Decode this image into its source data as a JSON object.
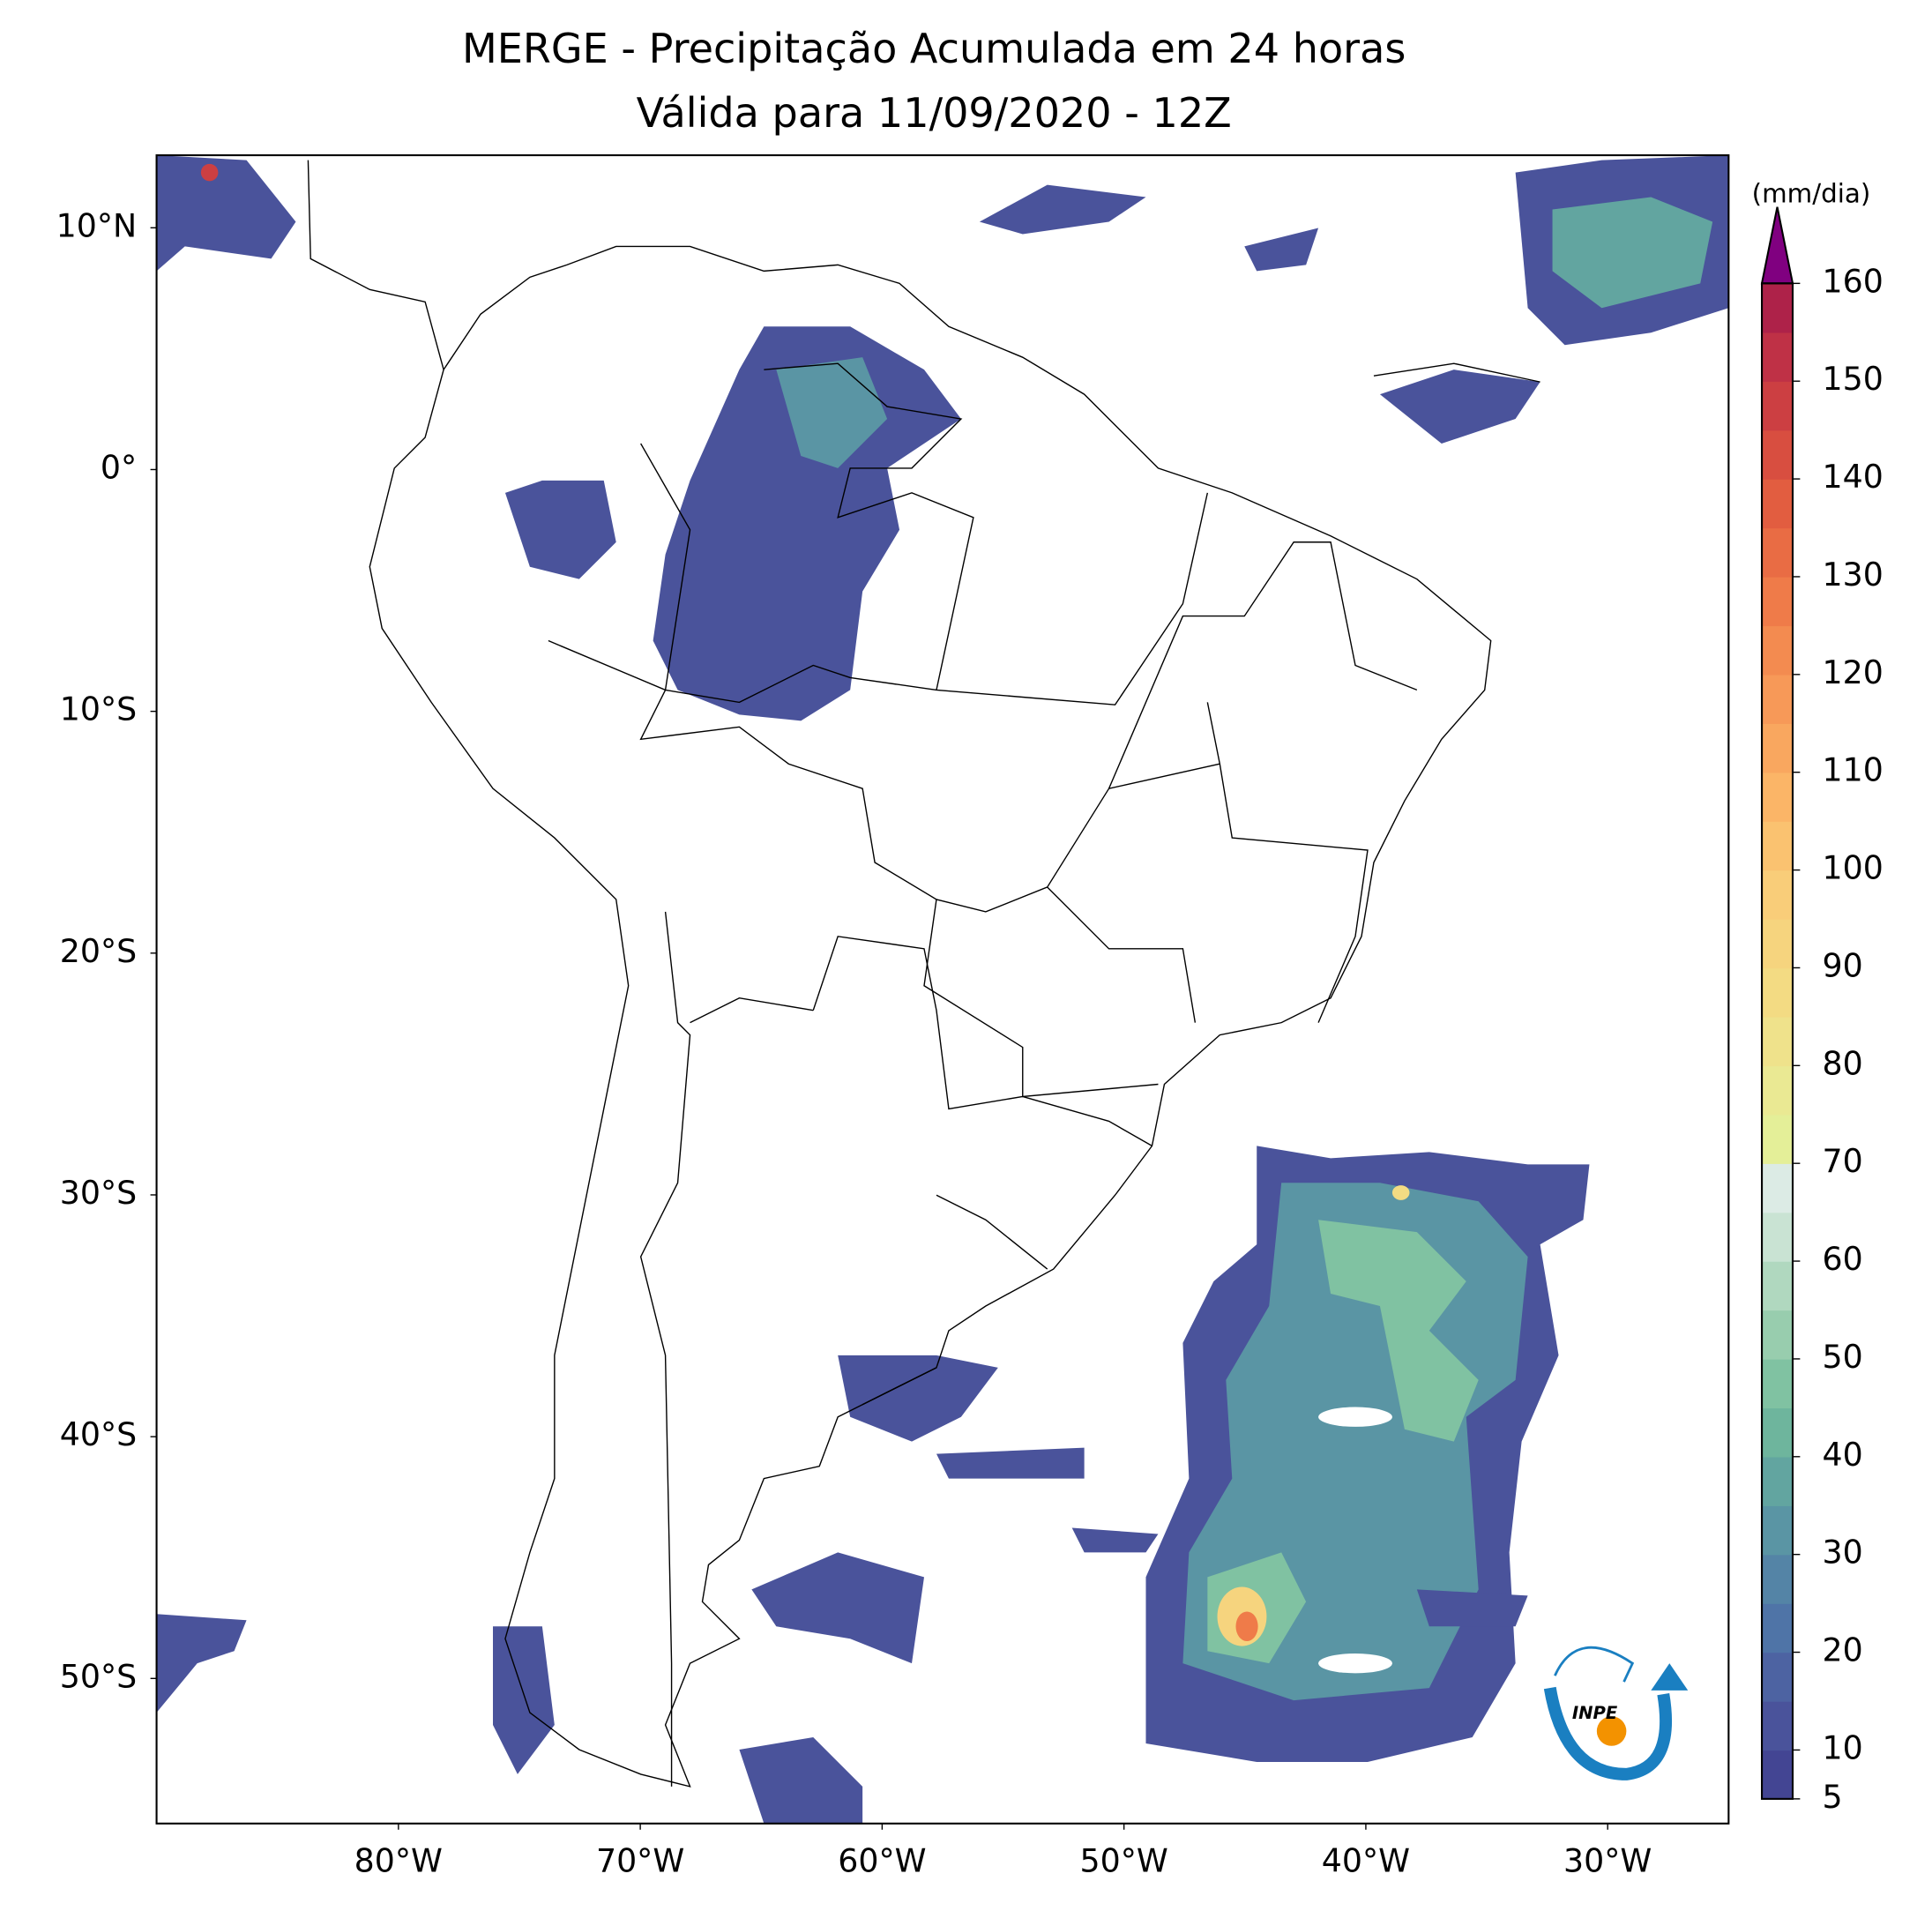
{
  "title": "MERGE - Precipitação Acumulada em 24 horas",
  "subtitle": "Válida para 11/09/2020 - 12Z",
  "map": {
    "lonlim": [
      -90,
      -25
    ],
    "latlim": [
      -56,
      13
    ],
    "lonticks": [
      {
        "value": -80,
        "label": "80°W"
      },
      {
        "value": -70,
        "label": "70°W"
      },
      {
        "value": -60,
        "label": "60°W"
      },
      {
        "value": -50,
        "label": "50°W"
      },
      {
        "value": -40,
        "label": "40°W"
      },
      {
        "value": -30,
        "label": "30°W"
      }
    ],
    "latticks": [
      {
        "value": 10,
        "label": "10°N"
      },
      {
        "value": 0,
        "label": "0°"
      },
      {
        "value": -10,
        "label": "10°S"
      },
      {
        "value": -20,
        "label": "20°S"
      },
      {
        "value": -30,
        "label": "30°S"
      },
      {
        "value": -40,
        "label": "40°S"
      },
      {
        "value": -50,
        "label": "50°S"
      }
    ]
  },
  "colorbar": {
    "unit": "(mm/dia)",
    "lim": [
      5,
      160
    ],
    "levels": [
      5,
      10,
      15,
      20,
      25,
      30,
      35,
      40,
      45,
      50,
      55,
      60,
      65,
      70,
      75,
      80,
      85,
      90,
      95,
      100,
      105,
      110,
      115,
      120,
      125,
      130,
      135,
      140,
      145,
      150,
      155,
      160
    ],
    "colors": [
      "#434593",
      "#4a539b",
      "#4d63a2",
      "#4f74a7",
      "#5484a6",
      "#5a95a4",
      "#62a5a0",
      "#6eb59d",
      "#80c2a2",
      "#98cdae",
      "#b0d8bf",
      "#c9e3d3",
      "#dcebe5",
      "#e4ef98",
      "#eae993",
      "#efe28b",
      "#f3db83",
      "#f6d47e",
      "#f9cd79",
      "#fac270",
      "#fbb567",
      "#f9a75f",
      "#f79958",
      "#f38b50",
      "#ef7b49",
      "#e96c44",
      "#e25d40",
      "#d84e40",
      "#cc3f42",
      "#bf3146",
      "#ae2249"
    ],
    "extend_color": "#800080",
    "ticks": [
      5,
      10,
      20,
      30,
      40,
      50,
      60,
      70,
      80,
      90,
      100,
      110,
      120,
      130,
      140,
      150,
      160
    ]
  },
  "logo": "INPE"
}
